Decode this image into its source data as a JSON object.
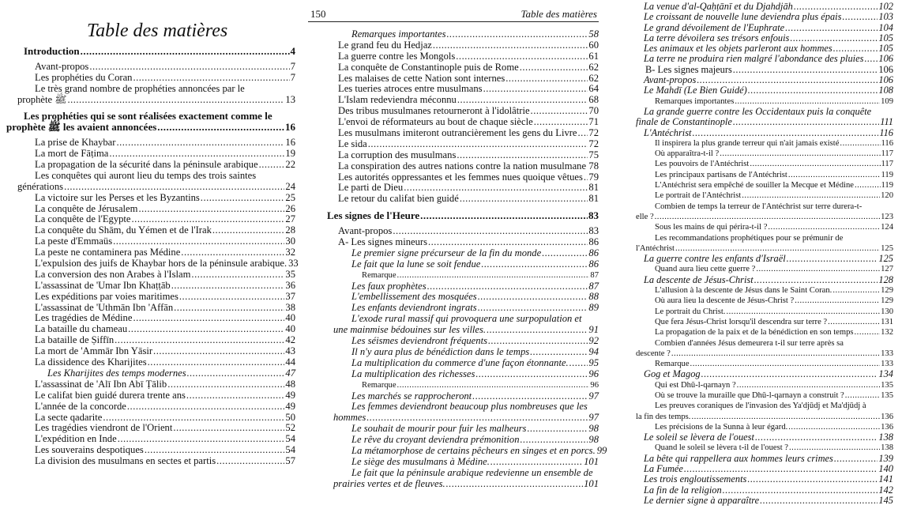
{
  "left_page": {
    "title": "Table des matières",
    "entries": [
      {
        "text": "Introduction",
        "page": "4",
        "style": "bold",
        "level": "h"
      },
      {
        "text": "Avant-propos",
        "page": "7",
        "level": "lv0"
      },
      {
        "text": "Les prophéties du Coran",
        "page": "7",
        "level": "lv0"
      },
      {
        "text": "Le très grand nombre de prophéties annoncées par le",
        "cont": "prophète ﷺ",
        "page": "13",
        "level": "lv0"
      },
      {
        "text": "Les prophéties qui se sont réalisées exactement comme le",
        "cont": "prophète ﷺ les avaient annoncées",
        "page": "16",
        "style": "bold",
        "level": "h"
      },
      {
        "text": "La prise de Khaybar",
        "page": "16",
        "level": "lv0"
      },
      {
        "text": "La mort de Fāṭima",
        "page": "19",
        "level": "lv0"
      },
      {
        "text": "La propagation de la sécurité dans la péninsule arabique",
        "page": "22",
        "level": "lv0"
      },
      {
        "text": "Les conquêtes qui auront lieu du temps des trois saintes",
        "cont": "générations",
        "page": "24",
        "level": "lv0"
      },
      {
        "text": "La victoire sur les Perses et les Byzantins",
        "page": "25",
        "level": "lv0"
      },
      {
        "text": "La conquête de Jérusalem",
        "page": "26",
        "level": "lv0"
      },
      {
        "text": "La conquête de l'Egypte",
        "page": "27",
        "level": "lv0"
      },
      {
        "text": "La conquête du Shām, du Yémen et de l'Irak",
        "page": "28",
        "level": "lv0"
      },
      {
        "text": "La peste d'Emmaüs",
        "page": "30",
        "level": "lv0"
      },
      {
        "text": "La peste ne contaminera pas Médine",
        "page": "32",
        "level": "lv0"
      },
      {
        "text": "L'expulsion des juifs de Khaybar hors de la péninsule arabique.",
        "page": "33",
        "level": "lv0"
      },
      {
        "text": "La conversion des non Arabes à l'Islam",
        "page": "35",
        "level": "lv0"
      },
      {
        "text": "L'assassinat de 'Umar Ibn Khaṭṭāb",
        "page": "36",
        "level": "lv0"
      },
      {
        "text": "Les expéditions par voies maritimes",
        "page": "37",
        "level": "lv0"
      },
      {
        "text": "L'assassinat de 'Uthmān Ibn 'Affān",
        "page": "38",
        "level": "lv0"
      },
      {
        "text": "Les tragédies de Médine",
        "page": "40",
        "level": "lv0"
      },
      {
        "text": "La bataille du chameau",
        "page": "40",
        "level": "lv0"
      },
      {
        "text": "La bataille de Ṣiffīn",
        "page": "42",
        "level": "lv0"
      },
      {
        "text": "La mort de 'Ammār Ibn Yāsir",
        "page": "43",
        "level": "lv0"
      },
      {
        "text": "La dissidence des Kharijites",
        "page": "44",
        "level": "lv0"
      },
      {
        "text": "Les Kharijites des temps modernes",
        "page": "47",
        "style": "italic",
        "level": "lv1"
      },
      {
        "text": "L'assassinat de 'Alī Ibn Abī Ṭālib",
        "page": "48",
        "level": "lv0"
      },
      {
        "text": "Le califat bien guidé durera trente ans",
        "page": "49",
        "level": "lv0"
      },
      {
        "text": "L'année de la concorde",
        "page": "49",
        "level": "lv0"
      },
      {
        "text": "La secte qadarite",
        "page": "50",
        "level": "lv0"
      },
      {
        "text": "Les tragédies viendront de l'Orient",
        "page": "52",
        "level": "lv0"
      },
      {
        "text": "L'expédition en Inde",
        "page": "54",
        "level": "lv0"
      },
      {
        "text": "Les souverains despotiques",
        "page": "54",
        "level": "lv0"
      },
      {
        "text": "La division des musulmans en sectes et partis",
        "page": "57",
        "level": "lv0"
      }
    ]
  },
  "middle_page": {
    "page_number": "150",
    "running_title": "Table des matières",
    "entries": [
      {
        "text": "Remarques importantes",
        "page": "58",
        "style": "italic",
        "level": "lv1"
      },
      {
        "text": "Le grand feu du Hedjaz",
        "page": "60",
        "level": "lv0"
      },
      {
        "text": "La guerre contre les Mongols",
        "page": "61",
        "level": "lv0"
      },
      {
        "text": "La conquête de Constantinople puis de Rome",
        "page": "62",
        "level": "lv0"
      },
      {
        "text": "Les malaises de cette Nation sont internes",
        "page": "62",
        "level": "lv0"
      },
      {
        "text": "Les tueries atroces entre musulmans",
        "page": "64",
        "level": "lv0"
      },
      {
        "text": "L'Islam redeviendra méconnu",
        "page": "68",
        "level": "lv0"
      },
      {
        "text": "Des tribus musulmanes retourneront à l'idolâtrie",
        "page": "70",
        "level": "lv0"
      },
      {
        "text": "L'envoi de réformateurs au bout de chaque siècle",
        "page": "71",
        "level": "lv0"
      },
      {
        "text": "Les musulmans imiteront outrancièrement les gens du Livre",
        "page": "72",
        "level": "lv0"
      },
      {
        "text": "Le sida",
        "page": "72",
        "level": "lv0"
      },
      {
        "text": "La corruption des musulmans",
        "page": "75",
        "level": "lv0"
      },
      {
        "text": "La conspiration des autres nations contre la nation musulmane",
        "page": "78",
        "level": "lv0"
      },
      {
        "text": "Les autorités oppressantes et les femmes nues quoique vêtues",
        "page": "79",
        "level": "lv0"
      },
      {
        "text": "Le parti de Dieu",
        "page": "81",
        "level": "lv0"
      },
      {
        "text": "Le retour du califat bien guidé",
        "page": "81",
        "level": "lv0"
      },
      {
        "text": "Les signes de l'Heure",
        "page": "83",
        "style": "bold",
        "level": "h"
      },
      {
        "text": "Avant-propos",
        "page": "83",
        "level": "lv0"
      },
      {
        "text": "A- Les signes mineurs",
        "page": "86",
        "level": "lv0"
      },
      {
        "text": "Le premier signe précurseur de la fin du monde",
        "page": "86",
        "style": "italic",
        "level": "lv1"
      },
      {
        "text": "Le fait que la lune se soit fendue",
        "page": "86",
        "style": "italic",
        "level": "lv1"
      },
      {
        "text": "Remarque",
        "page": "87",
        "style": "small",
        "level": "lv2"
      },
      {
        "text": "Les faux prophètes",
        "page": "87",
        "style": "italic",
        "level": "lv1"
      },
      {
        "text": "L'embellissement des mosquées",
        "page": "88",
        "style": "italic",
        "level": "lv1"
      },
      {
        "text": "Les enfants deviendront ingrats",
        "page": "89",
        "style": "italic",
        "level": "lv1"
      },
      {
        "text": "L'exode rural massif qui provoquera une surpopulation et",
        "cont": "une mainmise bédouines sur les villes.",
        "page": "91",
        "style": "italic",
        "level": "lv1"
      },
      {
        "text": "Les séismes deviendront fréquents",
        "page": "92",
        "style": "italic",
        "level": "lv1"
      },
      {
        "text": "Il n'y aura plus de bénédiction dans le temps",
        "page": "94",
        "style": "italic",
        "level": "lv1"
      },
      {
        "text": "La multiplication du commerce d'une façon étonnante.",
        "page": "95",
        "style": "italic",
        "level": "lv1"
      },
      {
        "text": "La multiplication des richesses",
        "page": "96",
        "style": "italic",
        "level": "lv1"
      },
      {
        "text": "Remarque",
        "page": "96",
        "style": "small",
        "level": "lv2"
      },
      {
        "text": "Les marchés se rapprocheront",
        "page": "97",
        "style": "italic",
        "level": "lv1"
      },
      {
        "text": "Les femmes deviendront beaucoup plus nombreuses que les",
        "cont": "hommes",
        "page": "97",
        "style": "italic",
        "level": "lv1"
      },
      {
        "text": "Le souhait de mourir pour fuir les malheurs",
        "page": "98",
        "style": "italic",
        "level": "lv1"
      },
      {
        "text": "Le rêve du croyant deviendra prémonition",
        "page": "98",
        "style": "italic",
        "level": "lv1"
      },
      {
        "text": "La métamorphose de certains pêcheurs en singes et en porcs.",
        "page": "99",
        "style": "italic",
        "level": "lv1"
      },
      {
        "text": "Le siège des musulmans à Médine.",
        "page": "101",
        "style": "italic",
        "level": "lv1"
      },
      {
        "text": "Le fait que la péninsule arabique redevienne un ensemble de",
        "cont": "prairies vertes et de fleuves.",
        "page": "101",
        "style": "italic",
        "level": "lv1"
      }
    ]
  },
  "right_page": {
    "entries": [
      {
        "text": "La venue d'al-Qaḥṭānī et du Djahdjāh",
        "page": "102",
        "style": "italic",
        "level": "lv1"
      },
      {
        "text": "Le croissant de nouvelle lune deviendra plus épais",
        "page": "103",
        "style": "italic",
        "level": "lv1"
      },
      {
        "text": "Le grand dévoilement de l'Euphrate",
        "page": "104",
        "style": "italic",
        "level": "lv1"
      },
      {
        "text": "La terre dévoilera ses trésors enfouis",
        "page": "105",
        "style": "italic",
        "level": "lv1"
      },
      {
        "text": "Les animaux et les objets parleront aux hommes",
        "page": "105",
        "style": "italic",
        "level": "lv1"
      },
      {
        "text": "La terre ne produira rien malgré l'abondance des pluies",
        "page": "106",
        "style": "italic",
        "level": "lv1"
      },
      {
        "text": "B- Les signes majeurs",
        "page": "106",
        "level": "lv0"
      },
      {
        "text": "Avant-propos",
        "page": "106",
        "style": "italic",
        "level": "lv1"
      },
      {
        "text": "Le Mahdī (Le Bien Guidé)",
        "page": "108",
        "style": "italic",
        "level": "lv1"
      },
      {
        "text": "Remarques importantes",
        "page": "109",
        "style": "small",
        "level": "lv2"
      },
      {
        "text": "La grande guerre contre les Occidentaux puis la conquête",
        "cont": "finale de Constantinople",
        "page": "111",
        "style": "italic",
        "level": "lv1"
      },
      {
        "text": "L'Antéchrist",
        "page": "116",
        "style": "italic",
        "level": "lv1"
      },
      {
        "text": "Il inspirera la plus grande terreur qui n'ait jamais existé",
        "page": "116",
        "style": "small",
        "level": "lv2"
      },
      {
        "text": "Où apparaîtra-t-il ?",
        "page": "117",
        "style": "small",
        "level": "lv2"
      },
      {
        "text": "Les pouvoirs de l'Antéchrist",
        "page": "117",
        "style": "small",
        "level": "lv2"
      },
      {
        "text": "Les principaux partisans de l'Antéchrist",
        "page": "119",
        "style": "small",
        "level": "lv2"
      },
      {
        "text": "L'Antéchrist sera empêché de souiller la Mecque et Médine",
        "page": "119",
        "style": "small",
        "level": "lv2"
      },
      {
        "text": "Le portrait de l'Antéchrist",
        "page": "120",
        "style": "small",
        "level": "lv2"
      },
      {
        "text": "Combien de temps la terreur de l'Antéchrist sur terre durera-t-",
        "cont": "elle ?",
        "page": "123",
        "style": "small",
        "level": "lv2"
      },
      {
        "text": "Sous les mains de qui périra-t-il ?",
        "page": "124",
        "style": "small",
        "level": "lv2"
      },
      {
        "text": "Les recommandations prophétiques pour se prémunir de",
        "cont": "l'Antéchrist",
        "page": "125",
        "style": "small",
        "level": "lv2"
      },
      {
        "text": "La guerre contre les enfants d'Israël",
        "page": "125",
        "style": "italic",
        "level": "lv1"
      },
      {
        "text": "Quand aura lieu cette guerre ?",
        "page": "127",
        "style": "small",
        "level": "lv2"
      },
      {
        "text": "La descente de Jésus-Christ",
        "page": "128",
        "style": "italic",
        "level": "lv1"
      },
      {
        "text": "L'allusion à la descente de Jésus dans le Saint Coran.",
        "page": "129",
        "style": "small",
        "level": "lv2"
      },
      {
        "text": "Où aura lieu la descente de Jésus-Christ ?",
        "page": "129",
        "style": "small",
        "level": "lv2"
      },
      {
        "text": "Le portrait du Christ.",
        "page": "130",
        "style": "small",
        "level": "lv2"
      },
      {
        "text": "Que fera Jésus-Christ lorsqu'il descendra sur terre ?",
        "page": "131",
        "style": "small",
        "level": "lv2"
      },
      {
        "text": "La propagation de la paix et de la bénédiction en son temps",
        "page": "132",
        "style": "small",
        "level": "lv2"
      },
      {
        "text": "Combien d'années Jésus demeurera t-il sur terre après sa",
        "cont": "descente ?",
        "page": "133",
        "style": "small",
        "level": "lv2"
      },
      {
        "text": "Remarque",
        "page": "133",
        "style": "small",
        "level": "lv2"
      },
      {
        "text": "Gog et Magog",
        "page": "134",
        "style": "italic",
        "level": "lv1"
      },
      {
        "text": "Qui est Dhū-l-qarnayn ?",
        "page": "135",
        "style": "small",
        "level": "lv2"
      },
      {
        "text": "Où se trouve la muraille que Dhū-l-qarnayn a construit ?",
        "page": "135",
        "style": "small",
        "level": "lv2"
      },
      {
        "text": "Les preuves coraniques de l'invasion des Ya'djūdj et Ma'djūdj à",
        "cont": "la fin des temps.",
        "page": "136",
        "style": "small",
        "level": "lv2"
      },
      {
        "text": "Les précisions de la Sunna à leur égard.",
        "page": "136",
        "style": "small",
        "level": "lv2"
      },
      {
        "text": "Le soleil se lèvera de l'ouest",
        "page": "138",
        "style": "italic",
        "level": "lv1"
      },
      {
        "text": "Quand le soleil se lèvera t-il de l'ouest ?",
        "page": "138",
        "style": "small",
        "level": "lv2"
      },
      {
        "text": "La bête qui rappellera aux hommes leurs crimes",
        "page": "139",
        "style": "italic",
        "level": "lv1"
      },
      {
        "text": "La Fumée",
        "page": "140",
        "style": "italic",
        "level": "lv1"
      },
      {
        "text": "Les trois engloutissements",
        "page": "141",
        "style": "italic",
        "level": "lv1"
      },
      {
        "text": "La fin de la religion",
        "page": "142",
        "style": "italic",
        "level": "lv1"
      },
      {
        "text": "Le dernier signe à apparaître",
        "page": "145",
        "style": "italic",
        "level": "lv1"
      }
    ]
  }
}
